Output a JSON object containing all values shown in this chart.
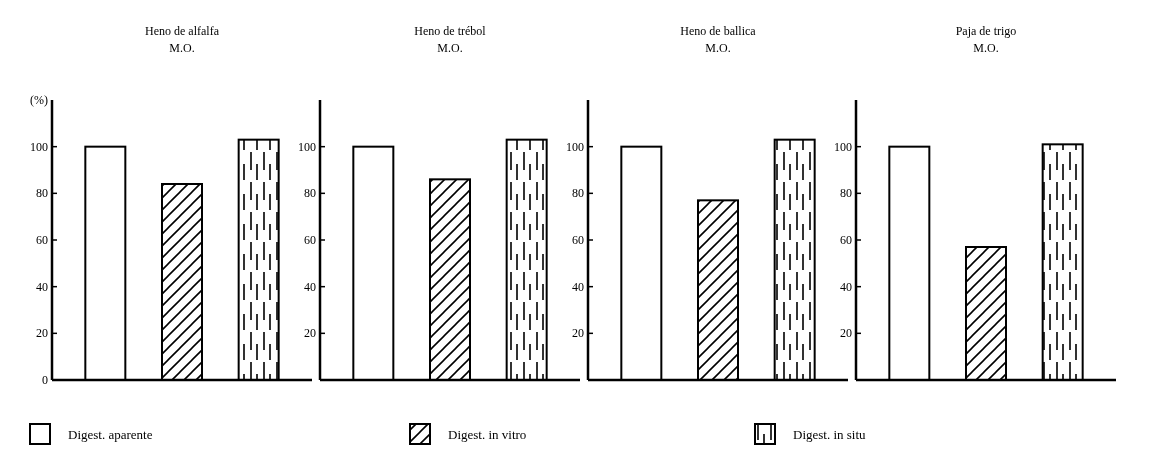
{
  "chart_data": [
    {
      "type": "bar",
      "title": "Heno de alfalfa\nM.O.",
      "ylabel": "(%)",
      "categories": [
        null
      ],
      "ylim": [
        0,
        120
      ],
      "yticks": [
        0,
        20,
        40,
        60,
        80,
        100
      ],
      "legend": "bottom",
      "series": [
        {
          "name": "Digest. aparente",
          "color": "#ffffff",
          "values": [
            100
          ]
        },
        {
          "name": "Digest. in vitro",
          "color": "#000000",
          "values": [
            84
          ]
        },
        {
          "name": "Digest. in situ",
          "color": "#000000",
          "values": [
            103
          ]
        }
      ]
    },
    {
      "type": "bar",
      "title": "Heno de trébol\nM.O.",
      "categories": [
        null
      ],
      "ylim": [
        0,
        120
      ],
      "yticks": [
        20,
        40,
        60,
        80,
        100
      ],
      "series": [
        {
          "color": "#ffffff",
          "values": [
            100
          ]
        },
        {
          "color": "#000000",
          "values": [
            86
          ]
        },
        {
          "color": "#000000",
          "values": [
            103
          ]
        }
      ]
    },
    {
      "type": "bar",
      "title": "Heno de ballica\nM.O.",
      "categories": [
        null
      ],
      "ylim": [
        0,
        120
      ],
      "yticks": [
        20,
        40,
        60,
        80,
        100
      ],
      "series": [
        {
          "color": "#ffffff",
          "values": [
            100
          ]
        },
        {
          "color": "#000000",
          "values": [
            77
          ]
        },
        {
          "color": "#000000",
          "values": [
            103
          ]
        }
      ]
    },
    {
      "type": "bar",
      "title": "Paja de trigo\nM.O.",
      "categories": [
        null
      ],
      "ylim": [
        0,
        120
      ],
      "yticks": [
        20,
        40,
        60,
        80,
        100
      ],
      "series": [
        {
          "color": "#ffffff",
          "values": [
            100
          ]
        },
        {
          "color": "#000000",
          "values": [
            57
          ]
        },
        {
          "color": "#000000",
          "values": [
            101
          ]
        }
      ]
    }
  ]
}
